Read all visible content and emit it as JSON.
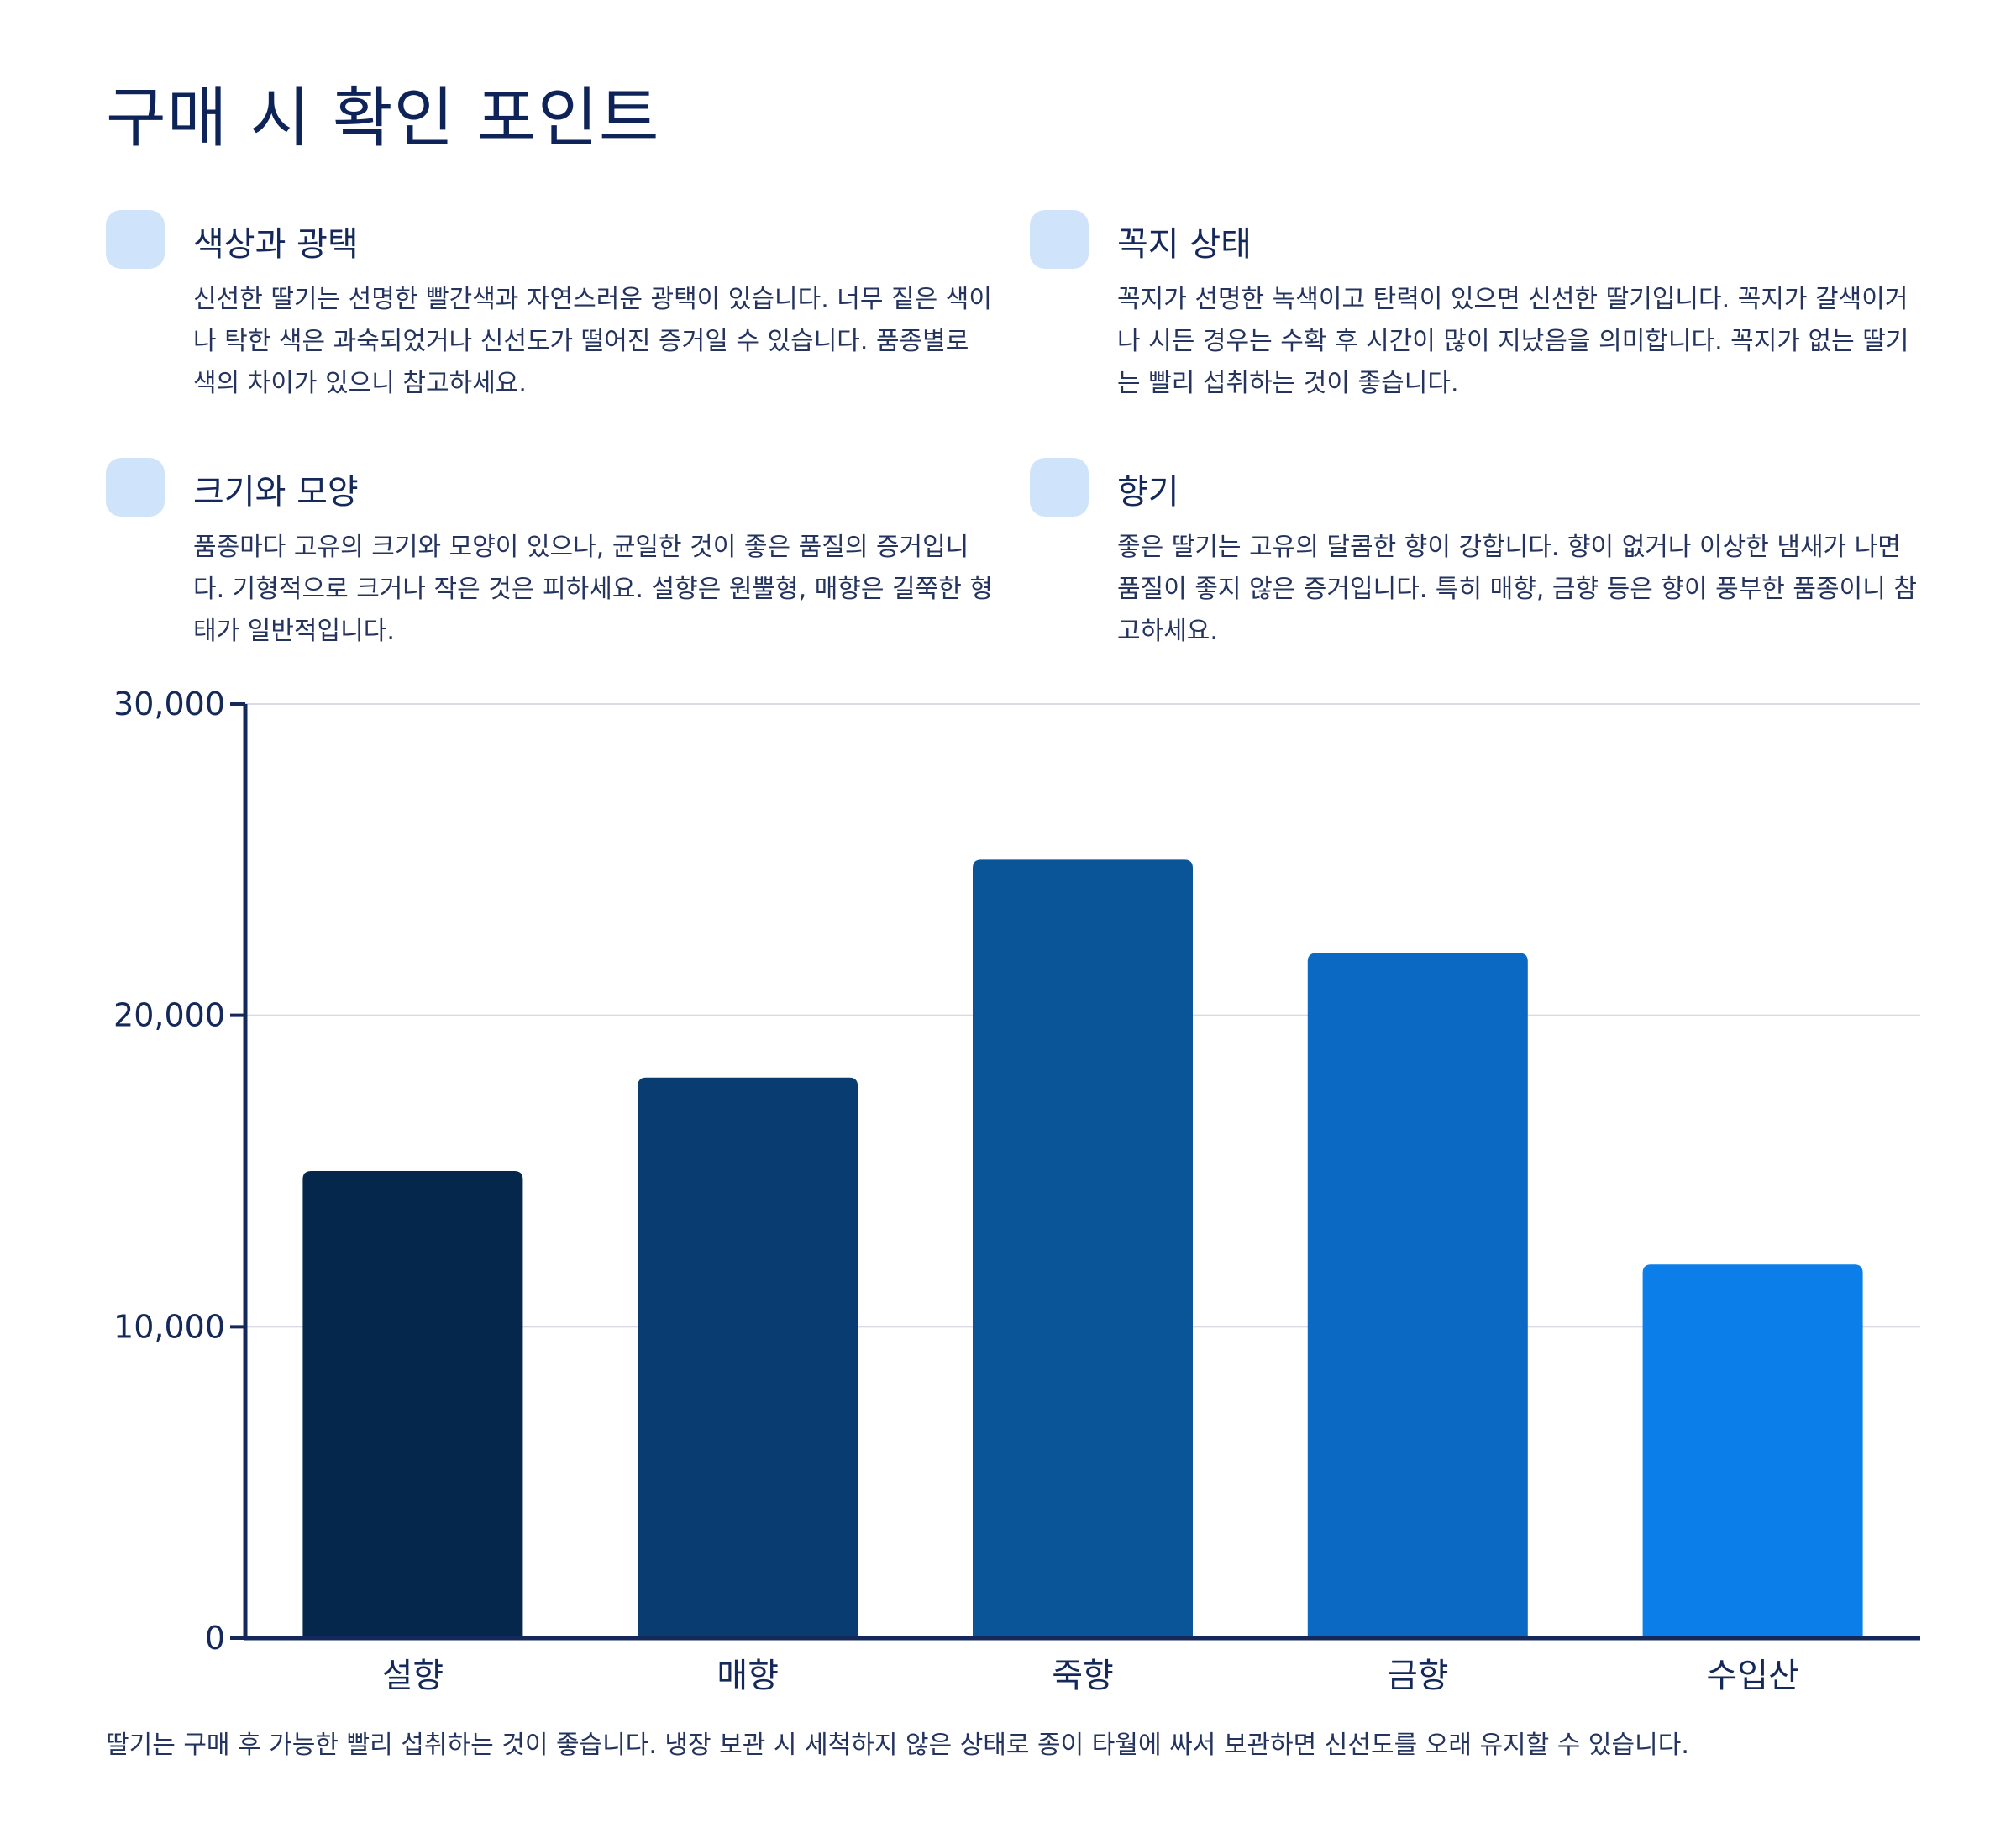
{
  "title": "구매 시 확인 포인트",
  "tips": [
    {
      "icon": "light-blue-square",
      "heading": "색상과 광택",
      "body": "신선한 딸기는 선명한 빨간색과 자연스러운 광택이 있습니다. 너무 짙은 색이나 탁한 색은 과숙되었거나 신선도가 떨어진 증거일 수 있습니다. 품종별로 색의 차이가 있으니 참고하세요."
    },
    {
      "icon": "light-blue-square",
      "heading": "꼭지 상태",
      "body": "꼭지가 선명한 녹색이고 탄력이 있으면 신선한 딸기입니다. 꼭지가 갈색이거나 시든 경우는 수확 후 시간이 많이 지났음을 의미합니다. 꼭지가 없는 딸기는 빨리 섭취하는 것이 좋습니다."
    },
    {
      "icon": "light-blue-square",
      "heading": "크기와 모양",
      "body": "품종마다 고유의 크기와 모양이 있으나, 균일한 것이 좋은 품질의 증거입니다. 기형적으로 크거나 작은 것은 피하세요. 설향은 원뿔형, 매향은 길쭉한 형태가 일반적입니다."
    },
    {
      "icon": "light-blue-square",
      "heading": "향기",
      "body": "좋은 딸기는 고유의 달콤한 향이 강합니다. 향이 없거나 이상한 냄새가 나면 품질이 좋지 않은 증거입니다. 특히 매향, 금향 등은 향이 풍부한 품종이니 참고하세요."
    }
  ],
  "chart_data": {
    "type": "bar",
    "categories": [
      "설향",
      "매향",
      "죽향",
      "금향",
      "수입산"
    ],
    "values": [
      15000,
      18000,
      25000,
      22000,
      12000
    ],
    "colors": [
      "#05274b",
      "#093c71",
      "#0a5498",
      "#0b69c3",
      "#0c7eea"
    ],
    "ylim": [
      0,
      30000
    ],
    "yticks": [
      0,
      10000,
      20000,
      30000
    ],
    "ytick_labels": [
      "0",
      "10,000",
      "20,000",
      "30,000"
    ],
    "grid": true,
    "axis_color": "#14295a",
    "grid_color": "#d8dbe6"
  },
  "footnote": "딸기는 구매 후 가능한 빨리 섭취하는 것이 좋습니다. 냉장 보관 시 세척하지 않은 상태로 종이 타월에 싸서 보관하면 신선도를 오래 유지할 수 있습니다."
}
